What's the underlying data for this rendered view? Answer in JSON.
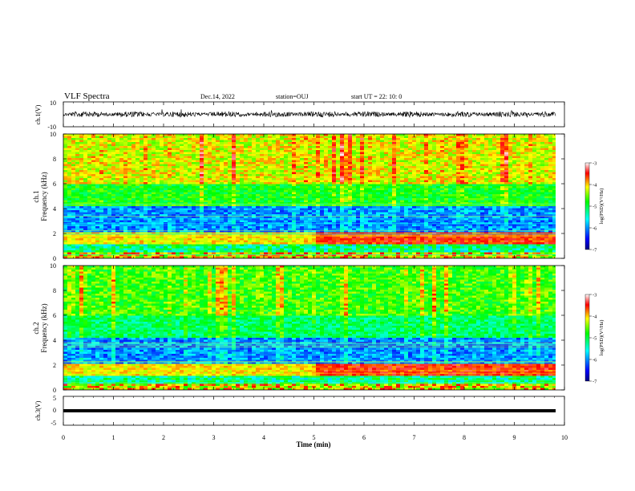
{
  "header": {
    "title": "VLF Spectra",
    "date": "Dec.14, 2022",
    "station": "station=OUJ",
    "start": "start  UT =   22: 10: 0"
  },
  "chart_data": [
    {
      "type": "line",
      "name": "ch1-waveform",
      "ylabel": "ch.1(V)",
      "ylim": [
        -10,
        10
      ],
      "yticks": [
        "10",
        "-10"
      ],
      "xlim": [
        0,
        10
      ]
    },
    {
      "type": "heatmap",
      "name": "ch1-spectrogram",
      "ylabel_top": "ch.1",
      "ylabel": "Frequency  (kHz)",
      "ylim": [
        0,
        10
      ],
      "yticks": [
        "0",
        "2",
        "4",
        "6",
        "8",
        "10"
      ],
      "xlim": [
        0,
        10
      ],
      "colorbar": {
        "label": "log(PSD)(V²/Hz)",
        "ticks": [
          "-3",
          "-4",
          "-5",
          "-6",
          "-7"
        ],
        "range": [
          -7,
          -3
        ]
      }
    },
    {
      "type": "heatmap",
      "name": "ch2-spectrogram",
      "ylabel_top": "ch.2",
      "ylabel": "Frequency  (kHz)",
      "ylim": [
        0,
        10
      ],
      "yticks": [
        "0",
        "2",
        "4",
        "6",
        "8",
        "10"
      ],
      "xlim": [
        0,
        10
      ],
      "colorbar": {
        "label": "log(PSD)(V²/Hz)",
        "ticks": [
          "-3",
          "-4",
          "-5",
          "-6",
          "-7"
        ],
        "range": [
          -7,
          -3
        ]
      }
    },
    {
      "type": "line",
      "name": "ch3-waveform",
      "ylabel": "ch.3(V)",
      "ylim": [
        -5,
        5
      ],
      "yticks": [
        "5",
        "0",
        "-5"
      ],
      "xlim": [
        0,
        10
      ]
    }
  ],
  "xaxis": {
    "label": "Time  (min)",
    "ticks": [
      "0",
      "1",
      "2",
      "3",
      "4",
      "5",
      "6",
      "7",
      "8",
      "9",
      "10"
    ]
  },
  "colors": {
    "low": "#00007f",
    "mid": "#00ff00",
    "high": "#ff0000"
  }
}
